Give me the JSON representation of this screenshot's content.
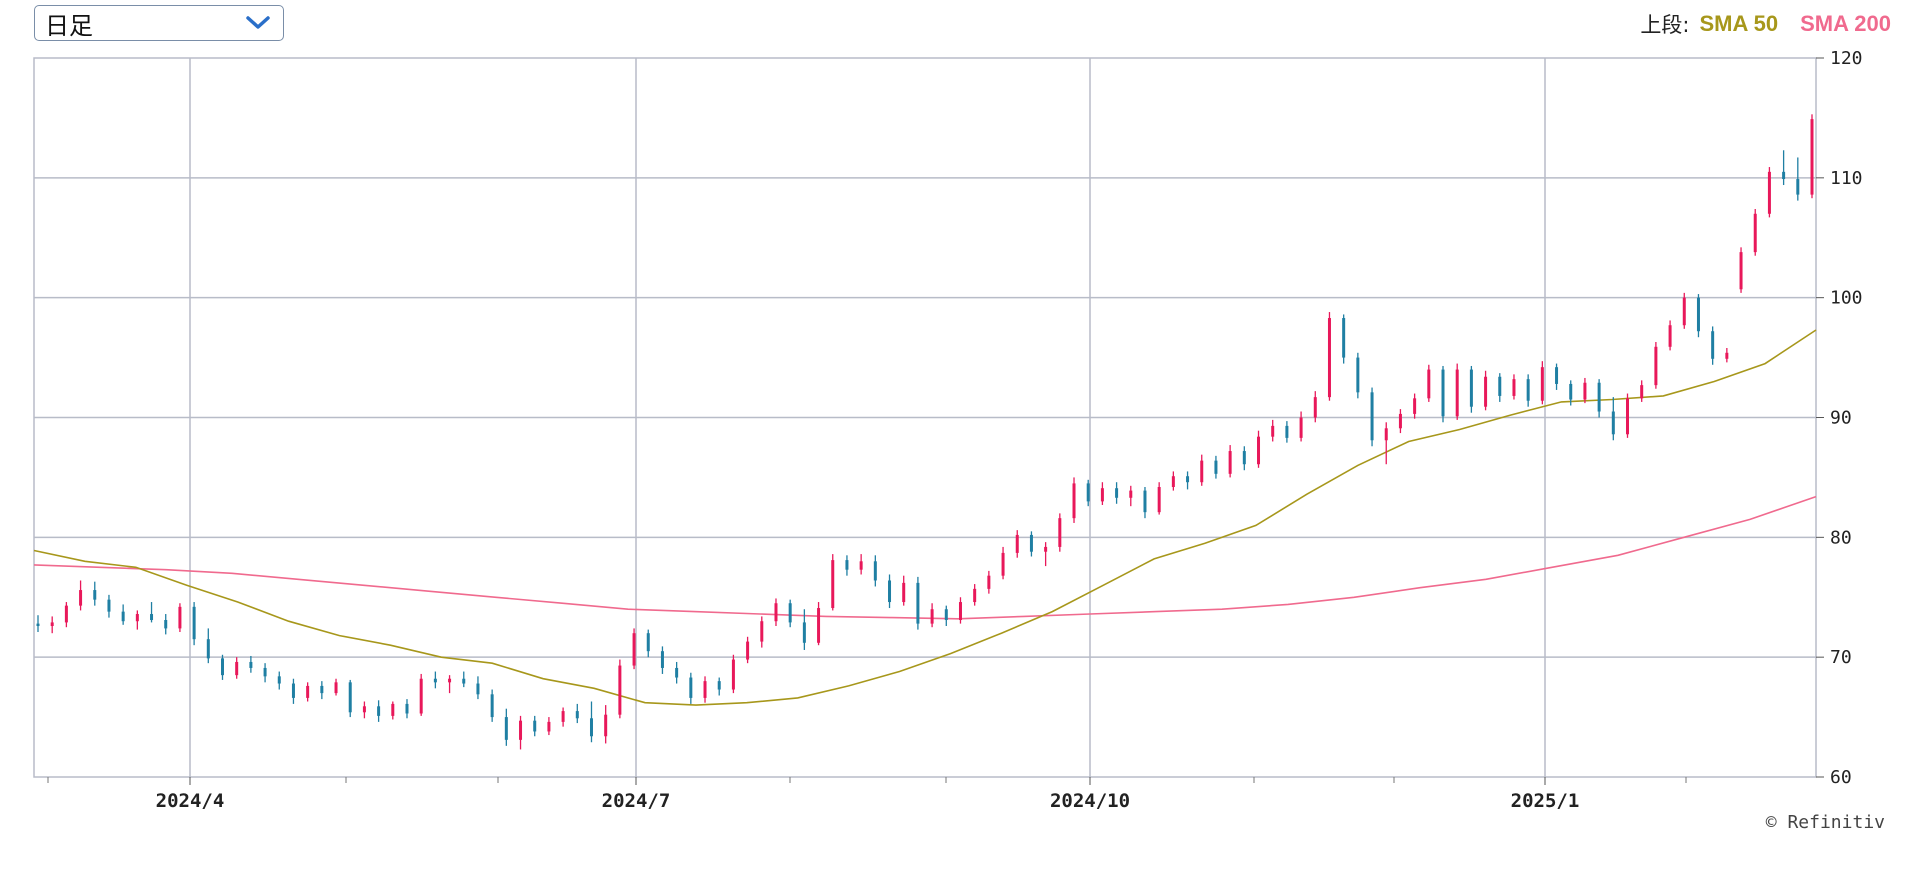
{
  "period_selector": {
    "value": "日足",
    "icon": "chevron-down-icon",
    "accent": "#2a6fc9"
  },
  "legend": {
    "prefix": "上段:",
    "sma50_label": "SMA 50",
    "sma200_label": "SMA 200",
    "sma50_color": "#a7971b",
    "sma200_color": "#f06a8e"
  },
  "credit": "© Refinitiv",
  "chart_data": {
    "type": "candlestick",
    "title": "",
    "xlabel": "",
    "ylabel": "",
    "ylim": [
      60,
      120
    ],
    "yticks": [
      "120",
      "110",
      "100",
      "90",
      "80",
      "70",
      "60"
    ],
    "xticks": [
      "2024/4",
      "2024/7",
      "2024/10",
      "2025/1"
    ],
    "grid": true,
    "y_axis_side": "right",
    "up_color": "#e8185a",
    "down_color": "#1f7fa3",
    "grid_color": "#b8bcc8",
    "legend_position": "top-right",
    "series": [
      {
        "name": "SMA 50",
        "color": "#a7971b",
        "values": [
          78.9,
          78.0,
          77.5,
          76.0,
          74.6,
          73.0,
          71.8,
          71.0,
          70.0,
          69.5,
          68.2,
          67.4,
          66.2,
          66.0,
          66.2,
          66.6,
          67.6,
          68.8,
          70.3,
          72.0,
          73.8,
          76.0,
          78.2,
          79.5,
          81.0,
          83.6,
          86.0,
          88.0,
          89.0,
          90.2,
          91.3,
          91.5,
          91.8,
          93.0,
          94.5,
          97.3
        ]
      },
      {
        "name": "SMA 200",
        "color": "#f06a8e",
        "values": [
          77.7,
          77.5,
          77.3,
          77.0,
          76.5,
          76.0,
          75.5,
          75.0,
          74.5,
          74.0,
          73.8,
          73.6,
          73.4,
          73.3,
          73.2,
          73.4,
          73.6,
          73.8,
          74.0,
          74.4,
          75.0,
          75.8,
          76.5,
          77.5,
          78.5,
          80.0,
          81.5,
          83.4
        ]
      }
    ],
    "candles": {
      "columns": [
        "open",
        "high",
        "low",
        "close"
      ],
      "values": [
        [
          72.8,
          73.5,
          72.1,
          72.6
        ],
        [
          72.6,
          73.4,
          72.0,
          72.9
        ],
        [
          72.9,
          74.6,
          72.5,
          74.3
        ],
        [
          74.3,
          76.4,
          73.9,
          75.6
        ],
        [
          75.6,
          76.3,
          74.3,
          74.8
        ],
        [
          74.8,
          75.2,
          73.3,
          73.8
        ],
        [
          73.8,
          74.4,
          72.7,
          73.0
        ],
        [
          73.0,
          73.9,
          72.3,
          73.6
        ],
        [
          73.6,
          74.6,
          72.9,
          73.1
        ],
        [
          73.1,
          73.6,
          71.9,
          72.4
        ],
        [
          72.4,
          74.5,
          72.1,
          74.2
        ],
        [
          74.2,
          74.6,
          71.0,
          71.5
        ],
        [
          71.5,
          72.4,
          69.5,
          69.9
        ],
        [
          69.9,
          70.2,
          68.1,
          68.5
        ],
        [
          68.5,
          70.0,
          68.2,
          69.6
        ],
        [
          69.6,
          70.1,
          68.7,
          69.1
        ],
        [
          69.1,
          69.5,
          67.9,
          68.4
        ],
        [
          68.4,
          68.8,
          67.3,
          67.8
        ],
        [
          67.8,
          68.2,
          66.1,
          66.6
        ],
        [
          66.6,
          67.9,
          66.3,
          67.6
        ],
        [
          67.6,
          68.0,
          66.5,
          67.0
        ],
        [
          67.0,
          68.2,
          66.8,
          67.9
        ],
        [
          67.9,
          68.1,
          65.0,
          65.4
        ],
        [
          65.4,
          66.3,
          64.9,
          65.9
        ],
        [
          65.9,
          66.4,
          64.6,
          65.1
        ],
        [
          65.1,
          66.3,
          64.8,
          66.1
        ],
        [
          66.1,
          66.5,
          64.9,
          65.3
        ],
        [
          65.3,
          68.6,
          65.1,
          68.2
        ],
        [
          68.2,
          68.8,
          67.4,
          67.9
        ],
        [
          67.9,
          68.5,
          67.0,
          68.2
        ],
        [
          68.2,
          68.8,
          67.5,
          67.8
        ],
        [
          67.8,
          68.4,
          66.5,
          66.9
        ],
        [
          66.9,
          67.3,
          64.6,
          65.0
        ],
        [
          65.0,
          65.7,
          62.6,
          63.1
        ],
        [
          63.1,
          65.1,
          62.3,
          64.7
        ],
        [
          64.7,
          65.1,
          63.4,
          63.8
        ],
        [
          63.8,
          65.0,
          63.5,
          64.6
        ],
        [
          64.6,
          65.8,
          64.2,
          65.5
        ],
        [
          65.5,
          66.1,
          64.5,
          64.9
        ],
        [
          64.9,
          66.3,
          62.9,
          63.4
        ],
        [
          63.4,
          66.0,
          62.8,
          65.2
        ],
        [
          65.2,
          69.8,
          64.9,
          69.3
        ],
        [
          69.3,
          72.4,
          69.0,
          72.0
        ],
        [
          72.0,
          72.3,
          70.0,
          70.5
        ],
        [
          70.5,
          70.9,
          68.6,
          69.1
        ],
        [
          69.1,
          69.6,
          67.8,
          68.3
        ],
        [
          68.3,
          68.7,
          66.1,
          66.6
        ],
        [
          66.6,
          68.4,
          66.2,
          68.0
        ],
        [
          68.0,
          68.3,
          66.8,
          67.3
        ],
        [
          67.3,
          70.2,
          67.0,
          69.8
        ],
        [
          69.8,
          71.7,
          69.5,
          71.3
        ],
        [
          71.3,
          73.4,
          70.8,
          73.0
        ],
        [
          73.0,
          74.9,
          72.6,
          74.5
        ],
        [
          74.5,
          74.8,
          72.5,
          72.9
        ],
        [
          72.9,
          74.0,
          70.6,
          71.2
        ],
        [
          71.2,
          74.6,
          71.0,
          74.1
        ],
        [
          74.1,
          78.6,
          73.9,
          78.1
        ],
        [
          78.1,
          78.5,
          76.8,
          77.3
        ],
        [
          77.3,
          78.6,
          76.9,
          78.0
        ],
        [
          78.0,
          78.5,
          75.9,
          76.4
        ],
        [
          76.4,
          76.9,
          74.1,
          74.6
        ],
        [
          74.6,
          76.8,
          74.3,
          76.2
        ],
        [
          76.2,
          76.7,
          72.3,
          72.8
        ],
        [
          72.8,
          74.5,
          72.5,
          74.0
        ],
        [
          74.0,
          74.3,
          72.6,
          73.1
        ],
        [
          73.1,
          75.0,
          72.8,
          74.6
        ],
        [
          74.6,
          76.1,
          74.3,
          75.7
        ],
        [
          75.7,
          77.2,
          75.3,
          76.8
        ],
        [
          76.8,
          79.2,
          76.5,
          78.7
        ],
        [
          78.7,
          80.6,
          78.3,
          80.2
        ],
        [
          80.2,
          80.5,
          78.4,
          78.8
        ],
        [
          78.8,
          79.6,
          77.6,
          79.2
        ],
        [
          79.2,
          82.0,
          78.8,
          81.6
        ],
        [
          81.6,
          85.0,
          81.2,
          84.5
        ],
        [
          84.5,
          84.8,
          82.6,
          83.0
        ],
        [
          83.0,
          84.6,
          82.7,
          84.1
        ],
        [
          84.1,
          84.6,
          82.8,
          83.3
        ],
        [
          83.3,
          84.3,
          82.6,
          83.9
        ],
        [
          83.9,
          84.2,
          81.6,
          82.1
        ],
        [
          82.1,
          84.6,
          81.9,
          84.2
        ],
        [
          84.2,
          85.5,
          83.9,
          85.1
        ],
        [
          85.1,
          85.5,
          84.0,
          84.6
        ],
        [
          84.6,
          86.9,
          84.3,
          86.4
        ],
        [
          86.4,
          86.8,
          84.9,
          85.3
        ],
        [
          85.3,
          87.7,
          85.0,
          87.2
        ],
        [
          87.2,
          87.6,
          85.6,
          86.1
        ],
        [
          86.1,
          88.9,
          85.8,
          88.4
        ],
        [
          88.4,
          89.8,
          88.0,
          89.3
        ],
        [
          89.3,
          89.7,
          87.9,
          88.3
        ],
        [
          88.3,
          90.5,
          88.0,
          90.0
        ],
        [
          90.0,
          92.2,
          89.6,
          91.7
        ],
        [
          91.7,
          98.8,
          91.4,
          98.3
        ],
        [
          98.3,
          98.6,
          94.5,
          95.0
        ],
        [
          95.0,
          95.4,
          91.6,
          92.1
        ],
        [
          92.1,
          92.5,
          87.6,
          88.1
        ],
        [
          88.1,
          89.6,
          86.1,
          89.1
        ],
        [
          89.1,
          90.7,
          88.7,
          90.3
        ],
        [
          90.3,
          92.0,
          89.9,
          91.6
        ],
        [
          91.6,
          94.4,
          91.3,
          94.0
        ],
        [
          94.0,
          94.3,
          89.6,
          90.1
        ],
        [
          90.1,
          94.5,
          89.8,
          94.0
        ],
        [
          94.0,
          94.3,
          90.4,
          90.9
        ],
        [
          90.9,
          93.9,
          90.6,
          93.4
        ],
        [
          93.4,
          93.7,
          91.3,
          91.8
        ],
        [
          91.8,
          93.6,
          91.5,
          93.2
        ],
        [
          93.2,
          93.6,
          90.9,
          91.4
        ],
        [
          91.4,
          94.7,
          91.1,
          94.2
        ],
        [
          94.2,
          94.5,
          92.3,
          92.8
        ],
        [
          92.8,
          93.1,
          91.0,
          91.5
        ],
        [
          91.5,
          93.3,
          91.2,
          92.9
        ],
        [
          92.9,
          93.2,
          90.0,
          90.5
        ],
        [
          90.5,
          91.7,
          88.1,
          88.6
        ],
        [
          88.6,
          92.0,
          88.3,
          91.6
        ],
        [
          91.6,
          93.1,
          91.3,
          92.7
        ],
        [
          92.7,
          96.3,
          92.4,
          95.9
        ],
        [
          95.9,
          98.1,
          95.6,
          97.7
        ],
        [
          97.7,
          100.4,
          97.4,
          100.0
        ],
        [
          100.0,
          100.3,
          96.7,
          97.2
        ],
        [
          97.2,
          97.6,
          94.4,
          94.9
        ],
        [
          94.9,
          95.8,
          94.6,
          95.4
        ],
        [
          100.7,
          104.2,
          100.4,
          103.8
        ],
        [
          103.8,
          107.4,
          103.5,
          107.0
        ],
        [
          107.0,
          110.9,
          106.7,
          110.5
        ],
        [
          110.5,
          112.3,
          109.4,
          109.9
        ],
        [
          109.9,
          111.7,
          108.1,
          108.6
        ],
        [
          108.6,
          115.3,
          108.3,
          114.9
        ]
      ]
    }
  }
}
